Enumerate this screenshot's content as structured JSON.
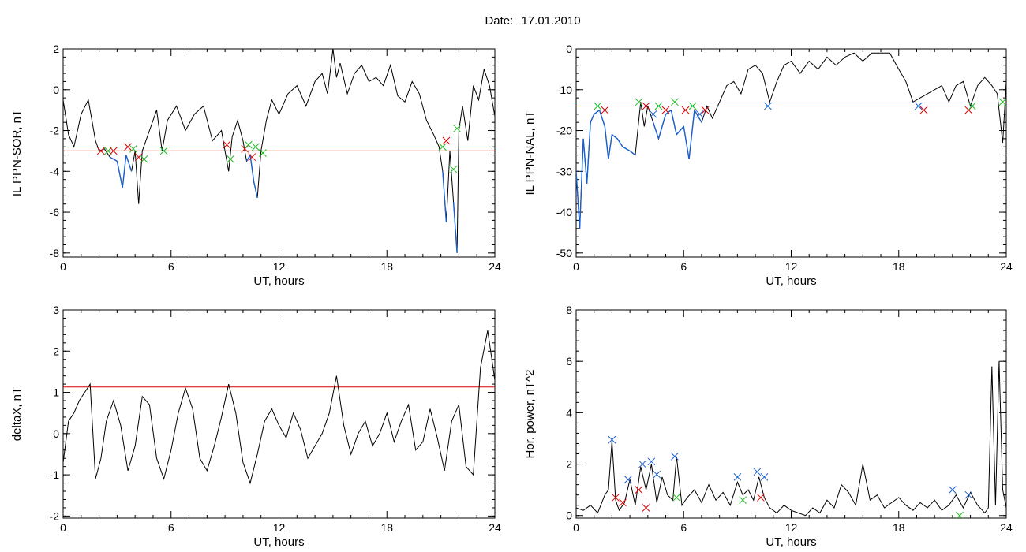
{
  "title": {
    "label": "Date:",
    "value": "17.01.2010"
  },
  "chart_data": [
    {
      "type": "line",
      "ylabel": "IL PPN-SOR, nT",
      "xlabel": "UT, hours",
      "xlim": [
        0,
        24
      ],
      "ylim": [
        -8.2,
        2.0
      ],
      "xticks": [
        0,
        6,
        12,
        18,
        24
      ],
      "yticks": [
        2,
        0,
        -2,
        -4,
        -6,
        -8
      ],
      "threshold": -3.0,
      "threshold_color": "#e00000",
      "line_color": "#000000",
      "below_color": "#1a5fd0",
      "series": [
        {
          "x": [
            0,
            0.3,
            0.6,
            1.0,
            1.4,
            1.8,
            2.0,
            2.3,
            2.6,
            3.0,
            3.3,
            3.5,
            3.8,
            4.0,
            4.2,
            4.4,
            4.8,
            5.2,
            5.5,
            5.8,
            6.3,
            6.8,
            7.3,
            7.8,
            8.3,
            8.8,
            9.0,
            9.2,
            9.4,
            9.7,
            10.0,
            10.2,
            10.4,
            10.6,
            10.8,
            11.0,
            11.3,
            11.6,
            12.0,
            12.5,
            13.0,
            13.5,
            14.0,
            14.4,
            14.7,
            15.0,
            15.2,
            15.4,
            15.8,
            16.2,
            16.6,
            17.0,
            17.4,
            17.8,
            18.2,
            18.6,
            19.0,
            19.4,
            19.8,
            20.2,
            20.6,
            20.9,
            21.1,
            21.3,
            21.5,
            21.7,
            21.9,
            22.0,
            22.2,
            22.5,
            22.8,
            23.1,
            23.4,
            23.7,
            24.0
          ],
          "y": [
            -0.5,
            -2.2,
            -2.8,
            -1.2,
            -0.5,
            -2.5,
            -3.0,
            -2.9,
            -3.3,
            -3.5,
            -4.8,
            -3.2,
            -4.0,
            -3.0,
            -5.6,
            -3.0,
            -2.0,
            -1.0,
            -3.0,
            -1.5,
            -0.8,
            -2.0,
            -1.2,
            -0.8,
            -2.5,
            -2.0,
            -3.0,
            -4.0,
            -2.3,
            -1.5,
            -2.5,
            -3.5,
            -3.2,
            -4.5,
            -5.3,
            -3.0,
            -1.5,
            -0.5,
            -1.2,
            -0.2,
            0.2,
            -0.8,
            0.4,
            0.8,
            -0.2,
            2.0,
            0.6,
            1.3,
            -0.2,
            0.8,
            1.2,
            0.4,
            0.6,
            0.2,
            1.2,
            -0.3,
            -0.6,
            0.4,
            -0.2,
            -1.5,
            -2.2,
            -2.8,
            -4.0,
            -6.5,
            -3.0,
            -5.5,
            -8.0,
            -2.0,
            -0.8,
            -2.5,
            0.2,
            -0.5,
            1.0,
            0.2,
            -1.3
          ]
        }
      ],
      "markers": {
        "x": [
          2.1,
          2.5,
          2.8,
          3.6,
          3.9,
          4.2,
          4.5,
          5.6,
          9.1,
          9.3,
          10.1,
          10.3,
          10.5,
          10.7,
          11.1,
          21.1,
          21.3,
          21.7,
          21.9
        ],
        "y": [
          -3.0,
          -3.0,
          -3.0,
          -2.8,
          -2.9,
          -3.3,
          -3.4,
          -3.0,
          -2.7,
          -3.4,
          -2.9,
          -2.7,
          -3.3,
          -2.8,
          -3.1,
          -2.8,
          -2.5,
          -3.9,
          -1.9
        ],
        "colors": [
          "#e00000",
          "#22bb22",
          "#e00000",
          "#e00000",
          "#22bb22",
          "#e00000",
          "#22bb22",
          "#22bb22",
          "#e00000",
          "#22bb22",
          "#e00000",
          "#22bb22",
          "#e00000",
          "#22bb22",
          "#22bb22",
          "#22bb22",
          "#e00000",
          "#22bb22",
          "#22bb22"
        ]
      }
    },
    {
      "type": "line",
      "ylabel": "IL PPN-NAL, nT",
      "xlabel": "UT, hours",
      "xlim": [
        0,
        24
      ],
      "ylim": [
        -51,
        0
      ],
      "xticks": [
        0,
        6,
        12,
        18,
        24
      ],
      "yticks": [
        0,
        -10,
        -20,
        -30,
        -40,
        -50
      ],
      "threshold": -14.0,
      "threshold_color": "#e00000",
      "line_color": "#000000",
      "below_color": "#1a5fd0",
      "series": [
        {
          "x": [
            0,
            0.2,
            0.4,
            0.6,
            0.8,
            1.0,
            1.3,
            1.6,
            1.8,
            2.0,
            2.3,
            2.6,
            3.0,
            3.3,
            3.6,
            3.8,
            4.0,
            4.3,
            4.6,
            5.0,
            5.3,
            5.6,
            6.0,
            6.3,
            6.6,
            7.0,
            7.3,
            7.6,
            8.0,
            8.4,
            8.8,
            9.2,
            9.6,
            10.0,
            10.4,
            10.8,
            11.2,
            11.6,
            12.0,
            12.5,
            13.0,
            13.5,
            14.0,
            14.5,
            15.0,
            15.5,
            16.0,
            16.5,
            17.0,
            17.5,
            18.0,
            18.4,
            18.8,
            19.2,
            19.6,
            20.0,
            20.4,
            20.8,
            21.2,
            21.6,
            22.0,
            22.4,
            22.8,
            23.2,
            23.5,
            23.8,
            24.0
          ],
          "y": [
            -30,
            -44,
            -22,
            -33,
            -18,
            -16,
            -15,
            -19,
            -27,
            -21,
            -22,
            -24,
            -25,
            -26,
            -13,
            -19,
            -14,
            -18,
            -22,
            -16,
            -15,
            -21,
            -19,
            -27,
            -15,
            -18,
            -14,
            -17,
            -13,
            -9,
            -8,
            -11,
            -5,
            -4,
            -6,
            -13,
            -8,
            -4,
            -3,
            -6,
            -3,
            -5,
            -2,
            -4,
            -2,
            -1,
            -3,
            -1,
            -1,
            -1,
            -5,
            -8,
            -13,
            -12,
            -11,
            -10,
            -9,
            -13,
            -9,
            -8,
            -14,
            -9,
            -7,
            -9,
            -11,
            -23,
            -8
          ]
        }
      ],
      "markers": {
        "x": [
          1.2,
          1.6,
          3.5,
          3.9,
          4.3,
          4.6,
          5.0,
          5.5,
          6.1,
          6.5,
          6.9,
          7.2,
          10.7,
          19.1,
          19.4,
          21.9,
          22.1,
          23.8
        ],
        "y": [
          -14,
          -15,
          -13,
          -14,
          -16,
          -14,
          -15,
          -13,
          -15,
          -14,
          -16,
          -15,
          -14,
          -14,
          -15,
          -15,
          -14,
          -13
        ],
        "colors": [
          "#22bb22",
          "#e00000",
          "#22bb22",
          "#e00000",
          "#1a5fd0",
          "#22bb22",
          "#e00000",
          "#22bb22",
          "#e00000",
          "#22bb22",
          "#1a5fd0",
          "#e00000",
          "#1a5fd0",
          "#1a5fd0",
          "#e00000",
          "#e00000",
          "#22bb22",
          "#22bb22"
        ]
      }
    },
    {
      "type": "line",
      "ylabel": "deltaX, nT",
      "xlabel": "UT, hours",
      "xlim": [
        0,
        24
      ],
      "ylim": [
        -2.05,
        3.0
      ],
      "xticks": [
        0,
        6,
        12,
        18,
        24
      ],
      "yticks": [
        3,
        2,
        1,
        0,
        -1,
        -2
      ],
      "threshold": 1.13,
      "threshold_color": "#e00000",
      "line_color": "#000000",
      "series": [
        {
          "x": [
            0,
            0.3,
            0.6,
            0.9,
            1.2,
            1.5,
            1.8,
            2.1,
            2.4,
            2.8,
            3.2,
            3.6,
            4.0,
            4.4,
            4.8,
            5.2,
            5.6,
            6.0,
            6.4,
            6.8,
            7.2,
            7.6,
            8.0,
            8.4,
            8.8,
            9.2,
            9.6,
            10.0,
            10.4,
            10.8,
            11.2,
            11.6,
            12.0,
            12.4,
            12.8,
            13.2,
            13.6,
            14.0,
            14.4,
            14.8,
            15.2,
            15.6,
            16.0,
            16.4,
            16.8,
            17.2,
            17.6,
            18.0,
            18.4,
            18.8,
            19.2,
            19.6,
            20.0,
            20.4,
            20.8,
            21.2,
            21.6,
            22.0,
            22.4,
            22.8,
            23.2,
            23.6,
            24.0
          ],
          "y": [
            -0.7,
            0.3,
            0.5,
            0.8,
            1.0,
            1.2,
            -1.1,
            -0.6,
            0.3,
            0.8,
            0.2,
            -0.9,
            -0.3,
            0.9,
            0.7,
            -0.6,
            -1.1,
            -0.4,
            0.5,
            1.1,
            0.6,
            -0.6,
            -0.9,
            -0.3,
            0.4,
            1.2,
            0.5,
            -0.7,
            -1.2,
            -0.5,
            0.3,
            0.6,
            0.2,
            -0.1,
            0.5,
            0.1,
            -0.6,
            -0.3,
            0.0,
            0.5,
            1.4,
            0.2,
            -0.5,
            0.0,
            0.3,
            -0.3,
            0.0,
            0.5,
            -0.2,
            0.3,
            0.7,
            -0.4,
            -0.2,
            0.6,
            -0.1,
            -0.9,
            0.3,
            0.7,
            -0.8,
            -1.0,
            1.6,
            2.5,
            1.3
          ]
        }
      ]
    },
    {
      "type": "line",
      "ylabel": "Hor. power, nT^2",
      "xlabel": "UT, hours",
      "xlim": [
        0,
        24
      ],
      "ylim": [
        -0.1,
        8.0
      ],
      "xticks": [
        0,
        6,
        12,
        18,
        24
      ],
      "yticks": [
        8,
        6,
        4,
        2,
        0
      ],
      "line_color": "#000000",
      "series": [
        {
          "x": [
            0,
            0.4,
            0.8,
            1.2,
            1.6,
            1.8,
            2.0,
            2.2,
            2.4,
            2.7,
            3.0,
            3.3,
            3.6,
            3.9,
            4.2,
            4.5,
            4.8,
            5.1,
            5.4,
            5.6,
            5.9,
            6.2,
            6.6,
            7.0,
            7.4,
            7.8,
            8.2,
            8.6,
            9.0,
            9.3,
            9.6,
            9.9,
            10.2,
            10.5,
            10.8,
            11.2,
            11.6,
            12.0,
            12.4,
            12.8,
            13.2,
            13.6,
            14.0,
            14.4,
            14.8,
            15.2,
            15.6,
            16.0,
            16.4,
            16.8,
            17.2,
            17.6,
            18.0,
            18.4,
            18.8,
            19.2,
            19.6,
            20.0,
            20.4,
            20.8,
            21.2,
            21.6,
            22.0,
            22.4,
            22.8,
            23.0,
            23.2,
            23.4,
            23.6,
            23.8,
            24.0
          ],
          "y": [
            0.3,
            0.2,
            0.4,
            0.1,
            0.8,
            1.0,
            2.9,
            0.6,
            0.2,
            0.5,
            1.4,
            0.4,
            1.9,
            1.0,
            2.0,
            0.5,
            1.5,
            0.8,
            0.6,
            2.3,
            0.4,
            0.7,
            1.0,
            0.5,
            1.2,
            0.6,
            0.9,
            0.4,
            1.3,
            0.8,
            1.0,
            0.6,
            1.5,
            0.7,
            0.3,
            0.1,
            0.4,
            0.2,
            0.1,
            0.0,
            0.3,
            0.1,
            0.6,
            0.3,
            1.2,
            0.9,
            0.4,
            2.0,
            0.6,
            0.8,
            0.3,
            0.5,
            0.7,
            0.4,
            0.2,
            0.5,
            0.3,
            0.6,
            0.2,
            0.4,
            0.8,
            0.3,
            0.9,
            0.4,
            0.1,
            0.3,
            5.8,
            0.4,
            6.0,
            1.0,
            0.3
          ]
        }
      ],
      "markers": {
        "x": [
          2.0,
          2.2,
          2.6,
          2.9,
          3.5,
          3.7,
          3.9,
          4.2,
          4.5,
          5.5,
          5.6,
          9.0,
          9.3,
          10.1,
          10.3,
          10.5,
          21.0,
          21.4,
          21.9
        ],
        "y": [
          2.95,
          0.7,
          0.5,
          1.4,
          1.0,
          2.0,
          0.3,
          2.1,
          1.6,
          2.3,
          0.7,
          1.5,
          0.6,
          1.7,
          0.7,
          1.5,
          1.0,
          0.0,
          0.8
        ],
        "colors": [
          "#1a5fd0",
          "#e00000",
          "#e00000",
          "#1a5fd0",
          "#e00000",
          "#1a5fd0",
          "#e00000",
          "#1a5fd0",
          "#1a5fd0",
          "#1a5fd0",
          "#22bb22",
          "#1a5fd0",
          "#22bb22",
          "#1a5fd0",
          "#e00000",
          "#1a5fd0",
          "#1a5fd0",
          "#22bb22",
          "#1a5fd0"
        ]
      }
    }
  ]
}
